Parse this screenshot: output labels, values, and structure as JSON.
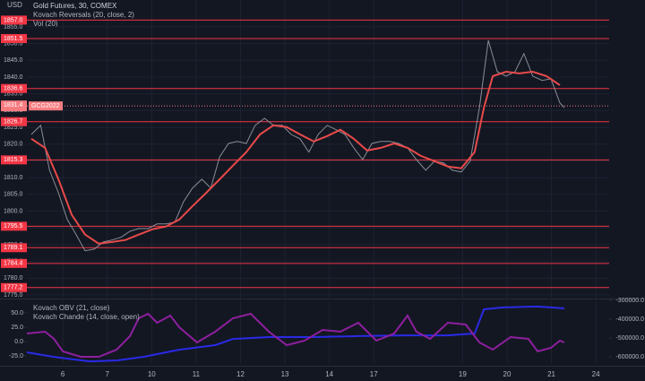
{
  "header": {
    "currency": "USD",
    "title": "Gold Futures, 30, COMEX",
    "volume_label": "Vol (20)"
  },
  "chart_data": [
    {
      "type": "line",
      "xlim": [
        -0.81,
        12.3
      ],
      "xticks": [
        {
          "value": 0,
          "label": "6"
        },
        {
          "value": 1,
          "label": "7"
        },
        {
          "value": 2,
          "label": "10"
        },
        {
          "value": 3,
          "label": "11"
        },
        {
          "value": 4,
          "label": "12"
        },
        {
          "value": 5,
          "label": "13"
        },
        {
          "value": 6,
          "label": "14"
        },
        {
          "value": 7,
          "label": "17"
        },
        {
          "value": 9,
          "label": "19"
        },
        {
          "value": 10,
          "label": "20"
        },
        {
          "value": 11,
          "label": "21"
        },
        {
          "value": 12,
          "label": "24"
        }
      ],
      "ylim": [
        1774.2,
        1863
      ],
      "yticks": [
        {
          "value": 1775,
          "label": "1775.0"
        },
        {
          "value": 1780,
          "label": "1780.0"
        },
        {
          "value": 1785,
          "label": "1785.0"
        },
        {
          "value": 1790,
          "label": "1790.0"
        },
        {
          "value": 1795,
          "label": "1795.0"
        },
        {
          "value": 1800,
          "label": "1800.0"
        },
        {
          "value": 1805,
          "label": "1805.0"
        },
        {
          "value": 1810,
          "label": "1810.0"
        },
        {
          "value": 1815,
          "label": "1815.0"
        },
        {
          "value": 1820,
          "label": "1820.0"
        },
        {
          "value": 1825,
          "label": "1825.0"
        },
        {
          "value": 1830,
          "label": "1830.0"
        },
        {
          "value": 1835,
          "label": "1835.0"
        },
        {
          "value": 1840,
          "label": "1840.0"
        },
        {
          "value": 1845,
          "label": "1845.0"
        },
        {
          "value": 1850,
          "label": "1850.0"
        },
        {
          "value": 1855,
          "label": "1855.0"
        }
      ],
      "grid": true,
      "levels": [
        {
          "value": 1857,
          "label": "1857.0"
        },
        {
          "value": 1851.5,
          "label": "1851.5"
        },
        {
          "value": 1836.6,
          "label": "1836.6"
        },
        {
          "value": 1826.7,
          "label": "1826.7"
        },
        {
          "value": 1815.3,
          "label": "1815.3"
        },
        {
          "value": 1795.5,
          "label": "1795.5"
        },
        {
          "value": 1789.1,
          "label": "1789.1"
        },
        {
          "value": 1784.4,
          "label": "1784.4"
        },
        {
          "value": 1777.2,
          "label": "1777.2"
        }
      ],
      "level_color": "#f23645",
      "last_price": {
        "value": 1831.4,
        "label": "1831.4",
        "symbol": "GCG2022",
        "color": "#f77c80"
      },
      "series": [
        {
          "color": "#8a8d96",
          "x": [
            -0.71,
            -0.5,
            -0.3,
            -0.1,
            0.1,
            0.3,
            0.5,
            0.71,
            0.91,
            1.11,
            1.31,
            1.51,
            1.71,
            1.92,
            2.12,
            2.32,
            2.52,
            2.72,
            2.92,
            3.13,
            3.33,
            3.53,
            3.73,
            3.93,
            4.13,
            4.33,
            4.54,
            4.74,
            4.94,
            5.14,
            5.34,
            5.54,
            5.75,
            5.95,
            6.15,
            6.35,
            6.55,
            6.75,
            6.96,
            7.16,
            7.36,
            7.56,
            7.76,
            7.96,
            8.17,
            8.37,
            8.57,
            8.77,
            8.97,
            9.17,
            9.38,
            9.58,
            9.78,
            9.98,
            10.18,
            10.38,
            10.58,
            10.79,
            10.99,
            11.19,
            11.29
          ],
          "values": [
            1822.9,
            1825.6,
            1812.2,
            1805.5,
            1797.5,
            1793.0,
            1788.2,
            1788.7,
            1790.8,
            1791.4,
            1792.2,
            1794.0,
            1794.8,
            1794.8,
            1796.2,
            1796.2,
            1796.7,
            1802.9,
            1806.9,
            1809.5,
            1806.9,
            1816.2,
            1820.2,
            1820.8,
            1820.2,
            1825.6,
            1827.7,
            1825.6,
            1825.6,
            1822.9,
            1821.6,
            1817.6,
            1822.9,
            1825.6,
            1824.3,
            1822.9,
            1818.9,
            1815.4,
            1820.2,
            1820.8,
            1820.8,
            1820.2,
            1818.9,
            1815.4,
            1812.2,
            1814.9,
            1814.4,
            1812.2,
            1811.7,
            1814.9,
            1830.9,
            1851.0,
            1841.6,
            1840.3,
            1841.6,
            1847.0,
            1840.3,
            1839.0,
            1839.5,
            1832.3,
            1830.9
          ]
        },
        {
          "name": "Kovach Reversals (20, close, 2)",
          "color": "#e84a4a",
          "x": [
            -0.71,
            -0.4,
            -0.1,
            0.2,
            0.5,
            0.81,
            1.11,
            1.41,
            1.71,
            2.02,
            2.32,
            2.62,
            2.92,
            3.23,
            3.53,
            3.83,
            4.13,
            4.44,
            4.74,
            5.04,
            5.34,
            5.65,
            5.95,
            6.25,
            6.55,
            6.85,
            7.16,
            7.46,
            7.76,
            8.06,
            8.37,
            8.67,
            8.97,
            9.27,
            9.48,
            9.68,
            9.98,
            10.28,
            10.58,
            10.89,
            11.19
          ],
          "values": [
            1821.6,
            1818.9,
            1809.5,
            1798.9,
            1793.0,
            1790.3,
            1790.8,
            1791.4,
            1793.0,
            1794.6,
            1795.4,
            1797.5,
            1801.5,
            1805.5,
            1809.5,
            1813.6,
            1817.6,
            1822.9,
            1825.6,
            1825.1,
            1822.9,
            1820.8,
            1822.4,
            1824.3,
            1821.6,
            1818.1,
            1818.9,
            1820.2,
            1818.9,
            1816.5,
            1814.9,
            1813.3,
            1812.8,
            1817.6,
            1830.9,
            1840.3,
            1841.6,
            1841.1,
            1841.6,
            1840.3,
            1837.6
          ]
        }
      ]
    },
    {
      "type": "line",
      "xlim": [
        -0.81,
        12.3
      ],
      "ylim": [
        -37.5,
        71.9
      ],
      "yticks": [
        {
          "value": 50,
          "label": "50.0"
        },
        {
          "value": 25,
          "label": "25.0"
        },
        {
          "value": 0,
          "label": "0.0"
        },
        {
          "value": -25,
          "label": "-25.0"
        }
      ],
      "y2lim": [
        -633000,
        -300000
      ],
      "y2ticks": [
        {
          "value": -300000,
          "label": "-300000.0"
        },
        {
          "value": -400000,
          "label": "-400000.0"
        },
        {
          "value": -500000,
          "label": "-500000.0"
        },
        {
          "value": -600000,
          "label": "-600000.0"
        }
      ],
      "series": [
        {
          "name": "Kovach OBV (21, close)",
          "color": "#2a2ae6",
          "axis": "y2",
          "x": [
            -0.81,
            -0.2,
            0.6,
            1.21,
            1.81,
            2.62,
            3.43,
            3.83,
            4.64,
            5.65,
            6.65,
            7.66,
            8.67,
            9.27,
            9.48,
            9.88,
            10.69,
            11.29
          ],
          "values": [
            -576000,
            -600000,
            -624000,
            -619000,
            -600000,
            -562000,
            -538000,
            -505000,
            -495000,
            -495000,
            -490000,
            -486000,
            -486000,
            -476000,
            -348000,
            -338000,
            -333000,
            -343000
          ]
        },
        {
          "name": "Kovach Chande (14, close, open)",
          "color": "#8e1f9e",
          "x": [
            -0.81,
            -0.4,
            -0.2,
            0,
            0.4,
            0.81,
            1.21,
            1.51,
            1.71,
            1.92,
            2.12,
            2.42,
            2.62,
            3.02,
            3.43,
            3.83,
            4.23,
            4.64,
            5.04,
            5.44,
            5.85,
            6.25,
            6.65,
            7.06,
            7.46,
            7.76,
            7.96,
            8.27,
            8.67,
            9.07,
            9.38,
            9.68,
            10.08,
            10.48,
            10.69,
            10.99,
            11.19,
            11.29
          ],
          "values": [
            14.1,
            17.2,
            4.7,
            -17.2,
            -26.6,
            -26.6,
            -14.1,
            9.4,
            40.6,
            48.4,
            32.8,
            45.3,
            25.0,
            -1.6,
            17.2,
            40.6,
            48.4,
            17.2,
            -6.3,
            1.6,
            20.3,
            17.2,
            32.8,
            1.6,
            14.1,
            45.3,
            17.2,
            4.7,
            32.8,
            29.7,
            -1.6,
            -14.1,
            7.8,
            4.7,
            -17.2,
            -10.9,
            1.6,
            -1.6
          ]
        }
      ]
    }
  ]
}
